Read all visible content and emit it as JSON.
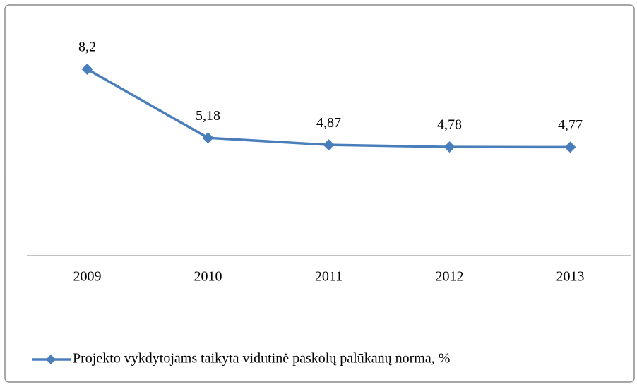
{
  "chart_data": {
    "type": "line",
    "categories": [
      "2009",
      "2010",
      "2011",
      "2012",
      "2013"
    ],
    "series": [
      {
        "name": "Projekto vykdytojams taikyta vidutinė paskolų palūkanų norma, %",
        "color": "#4a7ebb",
        "values": [
          8.2,
          5.18,
          4.87,
          4.78,
          4.77
        ],
        "value_labels": [
          "8,2",
          "5,18",
          "4,87",
          "4,78",
          "4,77"
        ]
      }
    ],
    "ylim": [
      0,
      10
    ],
    "legend": "bottom"
  }
}
